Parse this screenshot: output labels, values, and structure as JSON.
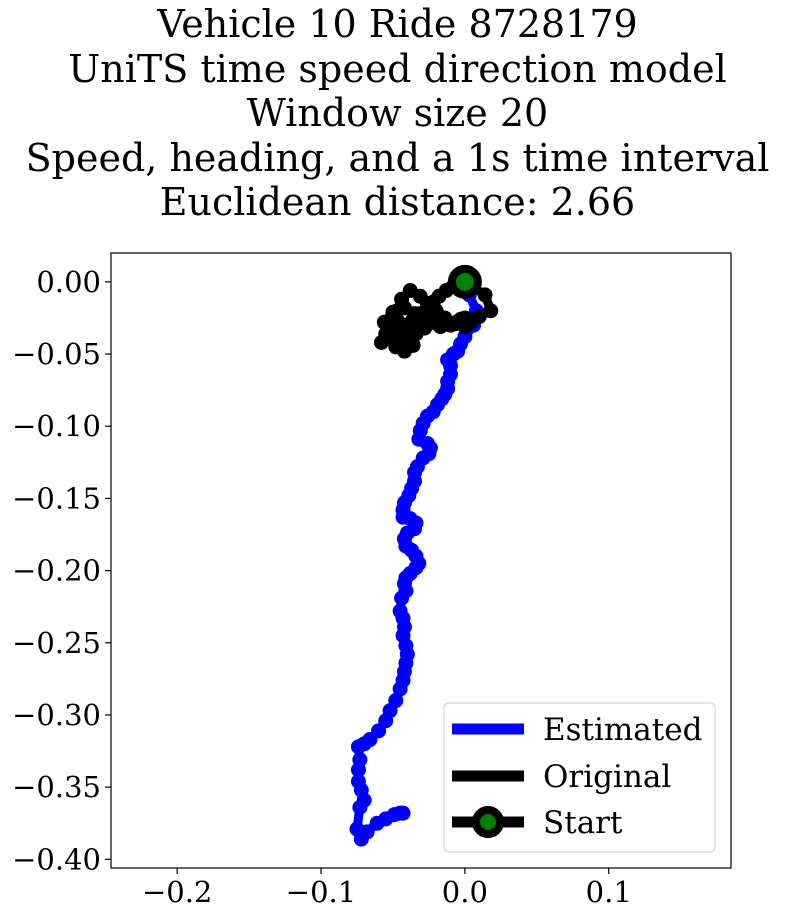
{
  "title_lines": [
    "Vehicle 10 Ride 8728179",
    "UniTS time speed direction model",
    "Window size 20",
    "Speed, heading, and a 1s time interval",
    "Euclidean distance: 2.66"
  ],
  "chart_data": {
    "type": "line",
    "title": "Vehicle 10 Ride 8728179 UniTS time speed direction model Window size 20 Speed, heading, and a 1s time interval Euclidean distance: 2.66",
    "xlabel": "",
    "ylabel": "",
    "xlim": [
      -0.246,
      0.185
    ],
    "ylim": [
      -0.406,
      0.02
    ],
    "xticks": [
      -0.2,
      -0.1,
      0.0,
      0.1
    ],
    "xtick_labels": [
      "−0.2",
      "−0.1",
      "0.0",
      "0.1"
    ],
    "yticks": [
      0.0,
      -0.05,
      -0.1,
      -0.15,
      -0.2,
      -0.25,
      -0.3,
      -0.35,
      -0.4
    ],
    "ytick_labels": [
      "0.00",
      "−0.05",
      "−0.10",
      "−0.15",
      "−0.20",
      "−0.25",
      "−0.30",
      "−0.35",
      "−0.40"
    ],
    "grid": false,
    "legend_position": "lower-right",
    "series": [
      {
        "name": "Estimated",
        "color": "#0000ff",
        "style": "thick line with circle markers",
        "x": [
          0.0,
          0.003,
          0.008,
          0.006,
          0.0,
          -0.003,
          -0.005,
          -0.008,
          -0.012,
          -0.01,
          -0.01,
          -0.012,
          -0.012,
          -0.014,
          -0.016,
          -0.019,
          -0.022,
          -0.026,
          -0.029,
          -0.031,
          -0.032,
          -0.026,
          -0.024,
          -0.025,
          -0.029,
          -0.033,
          -0.035,
          -0.035,
          -0.037,
          -0.039,
          -0.042,
          -0.043,
          -0.043,
          -0.038,
          -0.034,
          -0.035,
          -0.04,
          -0.042,
          -0.041,
          -0.037,
          -0.034,
          -0.032,
          -0.034,
          -0.038,
          -0.041,
          -0.042,
          -0.041,
          -0.044,
          -0.045,
          -0.043,
          -0.042,
          -0.043,
          -0.041,
          -0.04,
          -0.041,
          -0.042,
          -0.043,
          -0.045,
          -0.048,
          -0.052,
          -0.055,
          -0.06,
          -0.066,
          -0.07,
          -0.074,
          -0.073,
          -0.074,
          -0.074,
          -0.072,
          -0.07,
          -0.073,
          -0.075,
          -0.072,
          -0.068,
          -0.061,
          -0.055,
          -0.049,
          -0.045,
          -0.043
        ],
        "y": [
          0.0,
          -0.009,
          -0.02,
          -0.03,
          -0.038,
          -0.043,
          -0.048,
          -0.05,
          -0.054,
          -0.058,
          -0.064,
          -0.069,
          -0.074,
          -0.078,
          -0.081,
          -0.085,
          -0.09,
          -0.093,
          -0.098,
          -0.103,
          -0.109,
          -0.112,
          -0.115,
          -0.119,
          -0.122,
          -0.128,
          -0.132,
          -0.138,
          -0.143,
          -0.148,
          -0.153,
          -0.158,
          -0.163,
          -0.164,
          -0.167,
          -0.171,
          -0.174,
          -0.178,
          -0.183,
          -0.186,
          -0.19,
          -0.195,
          -0.198,
          -0.202,
          -0.205,
          -0.209,
          -0.214,
          -0.219,
          -0.228,
          -0.233,
          -0.239,
          -0.245,
          -0.252,
          -0.258,
          -0.264,
          -0.27,
          -0.276,
          -0.282,
          -0.29,
          -0.297,
          -0.304,
          -0.311,
          -0.317,
          -0.32,
          -0.322,
          -0.331,
          -0.338,
          -0.346,
          -0.352,
          -0.359,
          -0.364,
          -0.379,
          -0.386,
          -0.381,
          -0.375,
          -0.372,
          -0.369,
          -0.368,
          -0.368
        ]
      },
      {
        "name": "Original",
        "color": "#000000",
        "style": "thick line with circle markers",
        "x": [
          0.0,
          0.014,
          0.018,
          0.01,
          0.0,
          -0.006,
          -0.01,
          -0.016,
          -0.022,
          -0.028,
          -0.033,
          -0.038,
          -0.045,
          -0.048,
          -0.042,
          -0.036,
          -0.038,
          -0.048,
          -0.055,
          -0.058,
          -0.05,
          -0.044,
          -0.038,
          -0.032,
          -0.035,
          -0.042,
          -0.05,
          -0.056,
          -0.052,
          -0.045,
          -0.04,
          -0.034,
          -0.028,
          -0.022,
          -0.017,
          -0.01,
          -0.003,
          0.004,
          0.0,
          -0.007,
          -0.014,
          -0.02,
          -0.026,
          -0.031,
          -0.038,
          -0.044,
          -0.047,
          -0.046,
          -0.04,
          -0.036,
          -0.031,
          -0.026,
          -0.022,
          -0.018,
          -0.013,
          -0.008,
          -0.003,
          0.0
        ],
        "y": [
          0.0,
          -0.009,
          -0.02,
          -0.024,
          -0.025,
          -0.028,
          -0.03,
          -0.028,
          -0.026,
          -0.024,
          -0.028,
          -0.034,
          -0.038,
          -0.045,
          -0.048,
          -0.044,
          -0.038,
          -0.033,
          -0.036,
          -0.042,
          -0.038,
          -0.034,
          -0.035,
          -0.03,
          -0.022,
          -0.018,
          -0.021,
          -0.028,
          -0.034,
          -0.038,
          -0.04,
          -0.036,
          -0.032,
          -0.028,
          -0.031,
          -0.029,
          -0.026,
          -0.028,
          -0.031,
          -0.029,
          -0.025,
          -0.02,
          -0.015,
          -0.01,
          -0.006,
          -0.012,
          -0.02,
          -0.028,
          -0.03,
          -0.026,
          -0.022,
          -0.018,
          -0.014,
          -0.01,
          -0.006,
          -0.003,
          -0.001,
          0.0
        ]
      },
      {
        "name": "Start",
        "color": "#008000",
        "marker_edge_color": "#000000",
        "style": "single point marker",
        "x": [
          0.0
        ],
        "y": [
          0.0
        ]
      }
    ]
  }
}
